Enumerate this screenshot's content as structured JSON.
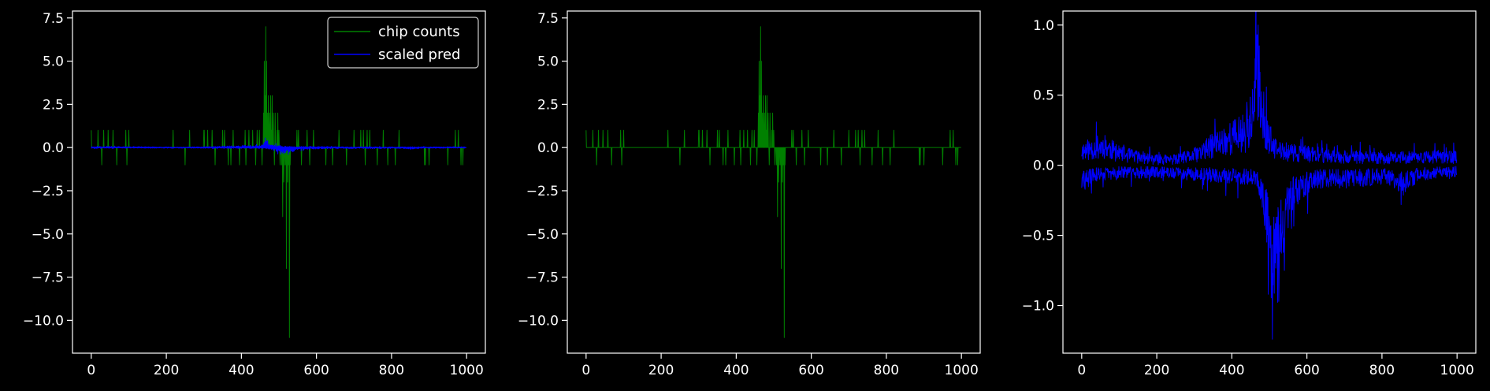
{
  "colors": {
    "background": "#000000",
    "axes": "#ffffff",
    "text": "#ffffff",
    "chip_counts": "#008000",
    "scaled_pred": "#0000ff"
  },
  "chart_data": [
    {
      "type": "line",
      "title": "",
      "xlabel": "",
      "ylabel": "",
      "xlim": [
        -50,
        1050
      ],
      "ylim": [
        -11.9,
        7.9
      ],
      "xticks": [
        0,
        200,
        400,
        600,
        800,
        1000
      ],
      "yticks": [
        -10.0,
        -7.5,
        -5.0,
        -2.5,
        0.0,
        2.5,
        5.0,
        7.5
      ],
      "xtick_labels": [
        "0",
        "200",
        "400",
        "600",
        "800",
        "1000"
      ],
      "ytick_labels": [
        "−10.0",
        "−7.5",
        "−5.0",
        "−2.5",
        "0.0",
        "2.5",
        "5.0",
        "7.5"
      ],
      "grid": false,
      "legend": "top-right",
      "n_points": 1000,
      "series": [
        {
          "name": "chip counts",
          "kind": "counts",
          "color": "#008000",
          "spikes": [
            [
              0,
              1
            ],
            [
              18,
              1
            ],
            [
              28,
              -1
            ],
            [
              33,
              1
            ],
            [
              45,
              1
            ],
            [
              58,
              1
            ],
            [
              68,
              -1
            ],
            [
              92,
              1
            ],
            [
              95,
              -1
            ],
            [
              100,
              1
            ],
            [
              218,
              1
            ],
            [
              250,
              -1
            ],
            [
              262,
              1
            ],
            [
              300,
              1
            ],
            [
              301,
              1
            ],
            [
              310,
              1
            ],
            [
              322,
              1
            ],
            [
              330,
              -1
            ],
            [
              350,
              1
            ],
            [
              355,
              1
            ],
            [
              365,
              -1
            ],
            [
              372,
              -1
            ],
            [
              378,
              1
            ],
            [
              395,
              -1
            ],
            [
              410,
              1
            ],
            [
              412,
              -1
            ],
            [
              420,
              1
            ],
            [
              430,
              1
            ],
            [
              438,
              -1
            ],
            [
              442,
              1
            ],
            [
              448,
              1
            ],
            [
              455,
              -1
            ],
            [
              459,
              2
            ],
            [
              461,
              5
            ],
            [
              463,
              3
            ],
            [
              465,
              7
            ],
            [
              467,
              5
            ],
            [
              470,
              2
            ],
            [
              472,
              3
            ],
            [
              475,
              2
            ],
            [
              478,
              3
            ],
            [
              480,
              1
            ],
            [
              482,
              3
            ],
            [
              485,
              2
            ],
            [
              488,
              -1
            ],
            [
              490,
              2
            ],
            [
              495,
              1
            ],
            [
              497,
              2
            ],
            [
              500,
              1
            ],
            [
              503,
              -1
            ],
            [
              507,
              -1
            ],
            [
              510,
              -4
            ],
            [
              513,
              -2
            ],
            [
              515,
              -1
            ],
            [
              518,
              -1
            ],
            [
              520,
              -7
            ],
            [
              523,
              -2
            ],
            [
              525,
              -1
            ],
            [
              528,
              -11
            ],
            [
              530,
              -1
            ],
            [
              548,
              1
            ],
            [
              552,
              1
            ],
            [
              560,
              -1
            ],
            [
              575,
              1
            ],
            [
              582,
              -1
            ],
            [
              592,
              1
            ],
            [
              625,
              -1
            ],
            [
              643,
              -1
            ],
            [
              660,
              1
            ],
            [
              680,
              -1
            ],
            [
              700,
              1
            ],
            [
              718,
              1
            ],
            [
              725,
              1
            ],
            [
              730,
              -1
            ],
            [
              735,
              1
            ],
            [
              742,
              1
            ],
            [
              762,
              -1
            ],
            [
              778,
              1
            ],
            [
              790,
              -1
            ],
            [
              810,
              -1
            ],
            [
              820,
              1
            ],
            [
              888,
              -1
            ],
            [
              890,
              -1
            ],
            [
              900,
              -1
            ],
            [
              950,
              -1
            ],
            [
              970,
              1
            ],
            [
              978,
              1
            ],
            [
              985,
              -1
            ],
            [
              990,
              -1
            ]
          ]
        },
        {
          "name": "scaled pred",
          "kind": "pred_scaled",
          "color": "#0000ff",
          "scale": 0.4
        }
      ]
    },
    {
      "type": "line",
      "title": "",
      "xlabel": "",
      "ylabel": "",
      "xlim": [
        -50,
        1050
      ],
      "ylim": [
        -11.9,
        7.9
      ],
      "xticks": [
        0,
        200,
        400,
        600,
        800,
        1000
      ],
      "yticks": [
        -10.0,
        -7.5,
        -5.0,
        -2.5,
        0.0,
        2.5,
        5.0,
        7.5
      ],
      "xtick_labels": [
        "0",
        "200",
        "400",
        "600",
        "800",
        "1000"
      ],
      "ytick_labels": [
        "−10.0",
        "−7.5",
        "−5.0",
        "−2.5",
        "0.0",
        "2.5",
        "5.0",
        "7.5"
      ],
      "grid": false,
      "n_points": 1000,
      "series": [
        {
          "kind": "counts",
          "color": "#008000",
          "spikes": [
            [
              0,
              1
            ],
            [
              18,
              1
            ],
            [
              28,
              -1
            ],
            [
              33,
              1
            ],
            [
              45,
              1
            ],
            [
              58,
              1
            ],
            [
              68,
              -1
            ],
            [
              92,
              1
            ],
            [
              95,
              -1
            ],
            [
              100,
              1
            ],
            [
              218,
              1
            ],
            [
              250,
              -1
            ],
            [
              262,
              1
            ],
            [
              300,
              1
            ],
            [
              301,
              1
            ],
            [
              310,
              1
            ],
            [
              322,
              1
            ],
            [
              330,
              -1
            ],
            [
              350,
              1
            ],
            [
              355,
              1
            ],
            [
              365,
              -1
            ],
            [
              372,
              -1
            ],
            [
              378,
              1
            ],
            [
              395,
              -1
            ],
            [
              410,
              1
            ],
            [
              412,
              -1
            ],
            [
              420,
              1
            ],
            [
              430,
              1
            ],
            [
              438,
              -1
            ],
            [
              442,
              1
            ],
            [
              448,
              1
            ],
            [
              455,
              -1
            ],
            [
              459,
              2
            ],
            [
              461,
              5
            ],
            [
              463,
              3
            ],
            [
              465,
              7
            ],
            [
              467,
              5
            ],
            [
              470,
              2
            ],
            [
              472,
              3
            ],
            [
              475,
              2
            ],
            [
              478,
              3
            ],
            [
              480,
              1
            ],
            [
              482,
              3
            ],
            [
              485,
              2
            ],
            [
              488,
              -1
            ],
            [
              490,
              2
            ],
            [
              495,
              1
            ],
            [
              497,
              2
            ],
            [
              500,
              1
            ],
            [
              503,
              -1
            ],
            [
              507,
              -1
            ],
            [
              510,
              -4
            ],
            [
              513,
              -2
            ],
            [
              515,
              -1
            ],
            [
              518,
              -1
            ],
            [
              520,
              -7
            ],
            [
              523,
              -2
            ],
            [
              525,
              -1
            ],
            [
              528,
              -11
            ],
            [
              530,
              -1
            ],
            [
              548,
              1
            ],
            [
              552,
              1
            ],
            [
              560,
              -1
            ],
            [
              575,
              1
            ],
            [
              582,
              -1
            ],
            [
              592,
              1
            ],
            [
              625,
              -1
            ],
            [
              643,
              -1
            ],
            [
              660,
              1
            ],
            [
              680,
              -1
            ],
            [
              700,
              1
            ],
            [
              718,
              1
            ],
            [
              725,
              1
            ],
            [
              730,
              -1
            ],
            [
              735,
              1
            ],
            [
              742,
              1
            ],
            [
              762,
              -1
            ],
            [
              778,
              1
            ],
            [
              790,
              -1
            ],
            [
              810,
              -1
            ],
            [
              820,
              1
            ],
            [
              888,
              -1
            ],
            [
              890,
              -1
            ],
            [
              900,
              -1
            ],
            [
              950,
              -1
            ],
            [
              970,
              1
            ],
            [
              978,
              1
            ],
            [
              985,
              -1
            ],
            [
              990,
              -1
            ]
          ]
        }
      ]
    },
    {
      "type": "line",
      "title": "",
      "xlabel": "",
      "ylabel": "",
      "xlim": [
        -50,
        1050
      ],
      "ylim": [
        -1.34,
        1.1
      ],
      "xticks": [
        0,
        200,
        400,
        600,
        800,
        1000
      ],
      "yticks": [
        -1.0,
        -0.5,
        0.0,
        0.5,
        1.0
      ],
      "xtick_labels": [
        "0",
        "200",
        "400",
        "600",
        "800",
        "1000"
      ],
      "ytick_labels": [
        "−1.0",
        "−0.5",
        "0.0",
        "0.5",
        "1.0"
      ],
      "grid": false,
      "n_points": 1000,
      "series": [
        {
          "kind": "pred_pos",
          "color": "#0000ff",
          "profile": [
            [
              0,
              0.1
            ],
            [
              30,
              0.12
            ],
            [
              60,
              0.14
            ],
            [
              100,
              0.08
            ],
            [
              150,
              0.06
            ],
            [
              200,
              0.04
            ],
            [
              250,
              0.04
            ],
            [
              300,
              0.07
            ],
            [
              350,
              0.14
            ],
            [
              400,
              0.2
            ],
            [
              440,
              0.24
            ],
            [
              460,
              0.4
            ],
            [
              470,
              0.7
            ],
            [
              478,
              0.45
            ],
            [
              490,
              0.25
            ],
            [
              510,
              0.12
            ],
            [
              530,
              0.1
            ],
            [
              560,
              0.09
            ],
            [
              600,
              0.08
            ],
            [
              650,
              0.07
            ],
            [
              700,
              0.06
            ],
            [
              800,
              0.05
            ],
            [
              900,
              0.06
            ],
            [
              1000,
              0.06
            ]
          ],
          "peaks": [
            [
              470,
              1.0
            ],
            [
              462,
              0.76
            ],
            [
              440,
              0.45
            ],
            [
              355,
              0.33
            ]
          ]
        },
        {
          "kind": "pred_neg",
          "color": "#0000ff",
          "profile": [
            [
              0,
              -0.12
            ],
            [
              30,
              -0.07
            ],
            [
              100,
              -0.05
            ],
            [
              200,
              -0.05
            ],
            [
              300,
              -0.06
            ],
            [
              400,
              -0.08
            ],
            [
              450,
              -0.08
            ],
            [
              470,
              -0.1
            ],
            [
              490,
              -0.3
            ],
            [
              505,
              -0.6
            ],
            [
              520,
              -0.5
            ],
            [
              540,
              -0.38
            ],
            [
              560,
              -0.22
            ],
            [
              600,
              -0.12
            ],
            [
              650,
              -0.09
            ],
            [
              700,
              -0.1
            ],
            [
              800,
              -0.08
            ],
            [
              860,
              -0.12
            ],
            [
              900,
              -0.06
            ],
            [
              1000,
              -0.05
            ]
          ],
          "peaks": [
            [
              508,
              -1.24
            ],
            [
              497,
              -0.92
            ],
            [
              525,
              -0.97
            ],
            [
              540,
              -0.75
            ]
          ]
        }
      ]
    }
  ],
  "legend": {
    "entries": [
      {
        "label": "chip counts",
        "color": "#008000"
      },
      {
        "label": "scaled pred",
        "color": "#0000ff"
      }
    ]
  }
}
